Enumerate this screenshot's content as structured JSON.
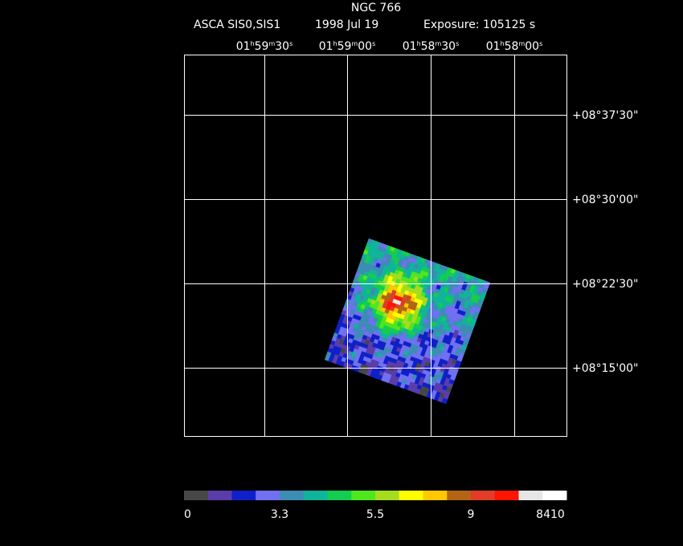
{
  "header": {
    "title": "NGC 766",
    "instrument": "ASCA SIS0,SIS1",
    "date": "1998 Jul 19",
    "exposure": "Exposure: 105125 s"
  },
  "ra_labels": [
    "01h59m30s",
    "01h59m00s",
    "01h58m30s",
    "01h58m00s"
  ],
  "dec_labels": [
    "+08°37'30\"",
    "+08°30'00\"",
    "+08°22'30\"",
    "+08°15'00\""
  ],
  "colorbar": {
    "colors": [
      "#474747",
      "#5a3caa",
      "#1020c8",
      "#7070f0",
      "#3c8cb4",
      "#10b49a",
      "#14cc50",
      "#50e61e",
      "#a6dc1e",
      "#ffff00",
      "#ffc800",
      "#b46414",
      "#e03c28",
      "#ff1400",
      "#e6e6e6",
      "#ffffff"
    ],
    "labels": [
      "0",
      "3.3",
      "5.5",
      "9",
      "8410"
    ]
  }
}
